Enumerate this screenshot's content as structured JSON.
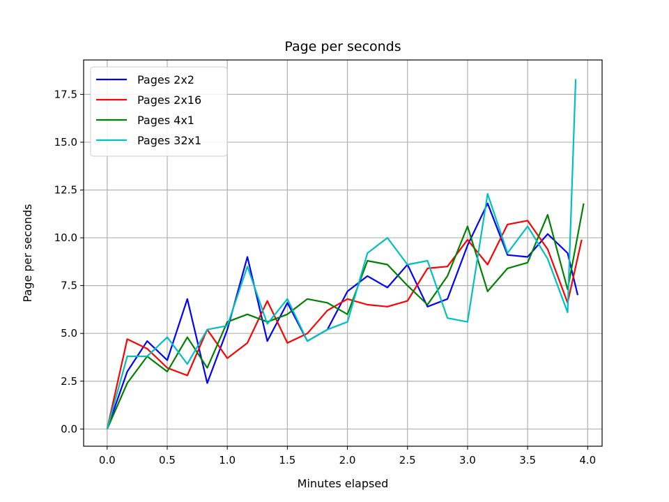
{
  "chart_data": {
    "type": "line",
    "title": "Page per seconds",
    "xlabel": "Minutes elapsed",
    "ylabel": "Page per seconds",
    "xlim": [
      -0.196,
      4.12
    ],
    "ylim": [
      -0.9,
      19.3
    ],
    "xticks": [
      "0.0",
      "0.5",
      "1.0",
      "1.5",
      "2.0",
      "2.5",
      "3.0",
      "3.5",
      "4.0"
    ],
    "yticks": [
      "0.0",
      "2.5",
      "5.0",
      "7.5",
      "10.0",
      "12.5",
      "15.0",
      "17.5"
    ],
    "grid": true,
    "legend_position": "top-left",
    "series": [
      {
        "name": "Pages 2x2",
        "color": "#0000ff",
        "x": [
          0.0,
          0.167,
          0.333,
          0.5,
          0.667,
          0.833,
          1.0,
          1.167,
          1.333,
          1.5,
          1.667,
          1.833,
          2.0,
          2.167,
          2.333,
          2.5,
          2.667,
          2.833,
          3.0,
          3.167,
          3.333,
          3.5,
          3.667,
          3.833,
          3.917
        ],
        "y": [
          0.0,
          3.0,
          4.6,
          3.6,
          6.8,
          2.4,
          5.2,
          9.0,
          4.6,
          6.6,
          4.6,
          5.2,
          7.2,
          8.0,
          7.4,
          8.6,
          6.4,
          6.8,
          9.6,
          11.8,
          9.1,
          9.0,
          10.2,
          9.2,
          7.0
        ]
      },
      {
        "name": "Pages 2x16",
        "color": "#ff0000",
        "x": [
          0.0,
          0.167,
          0.333,
          0.5,
          0.667,
          0.833,
          1.0,
          1.167,
          1.333,
          1.5,
          1.667,
          1.833,
          2.0,
          2.167,
          2.333,
          2.5,
          2.667,
          2.833,
          3.0,
          3.167,
          3.333,
          3.5,
          3.667,
          3.833,
          3.95
        ],
        "y": [
          0.0,
          4.7,
          4.2,
          3.2,
          2.8,
          5.2,
          3.7,
          4.5,
          6.7,
          4.5,
          5.0,
          6.2,
          6.8,
          6.5,
          6.4,
          6.7,
          8.4,
          8.5,
          9.9,
          8.6,
          10.7,
          10.9,
          9.4,
          6.6,
          9.9
        ]
      },
      {
        "name": "Pages 4x1",
        "color": "#008000",
        "x": [
          0.0,
          0.167,
          0.333,
          0.5,
          0.667,
          0.833,
          1.0,
          1.167,
          1.333,
          1.5,
          1.667,
          1.833,
          2.0,
          2.167,
          2.333,
          2.5,
          2.667,
          2.833,
          3.0,
          3.167,
          3.333,
          3.5,
          3.667,
          3.833,
          3.967
        ],
        "y": [
          0.0,
          2.4,
          3.8,
          3.0,
          4.8,
          3.2,
          5.6,
          6.0,
          5.6,
          6.0,
          6.8,
          6.6,
          6.0,
          8.8,
          8.6,
          7.5,
          6.5,
          8.0,
          10.6,
          7.2,
          8.4,
          8.7,
          11.2,
          7.3,
          11.8
        ]
      },
      {
        "name": "Pages 32x1",
        "color": "#00bfbf",
        "x": [
          0.0,
          0.167,
          0.333,
          0.5,
          0.667,
          0.833,
          1.0,
          1.167,
          1.333,
          1.5,
          1.667,
          1.833,
          2.0,
          2.167,
          2.333,
          2.5,
          2.667,
          2.833,
          3.0,
          3.167,
          3.333,
          3.5,
          3.667,
          3.833,
          3.9
        ],
        "y": [
          0.0,
          3.8,
          3.8,
          4.8,
          3.4,
          5.2,
          5.4,
          8.5,
          5.5,
          6.8,
          4.6,
          5.2,
          5.6,
          9.2,
          10.0,
          8.6,
          8.8,
          5.8,
          5.6,
          12.3,
          9.2,
          10.6,
          8.9,
          6.1,
          18.3
        ]
      }
    ]
  }
}
